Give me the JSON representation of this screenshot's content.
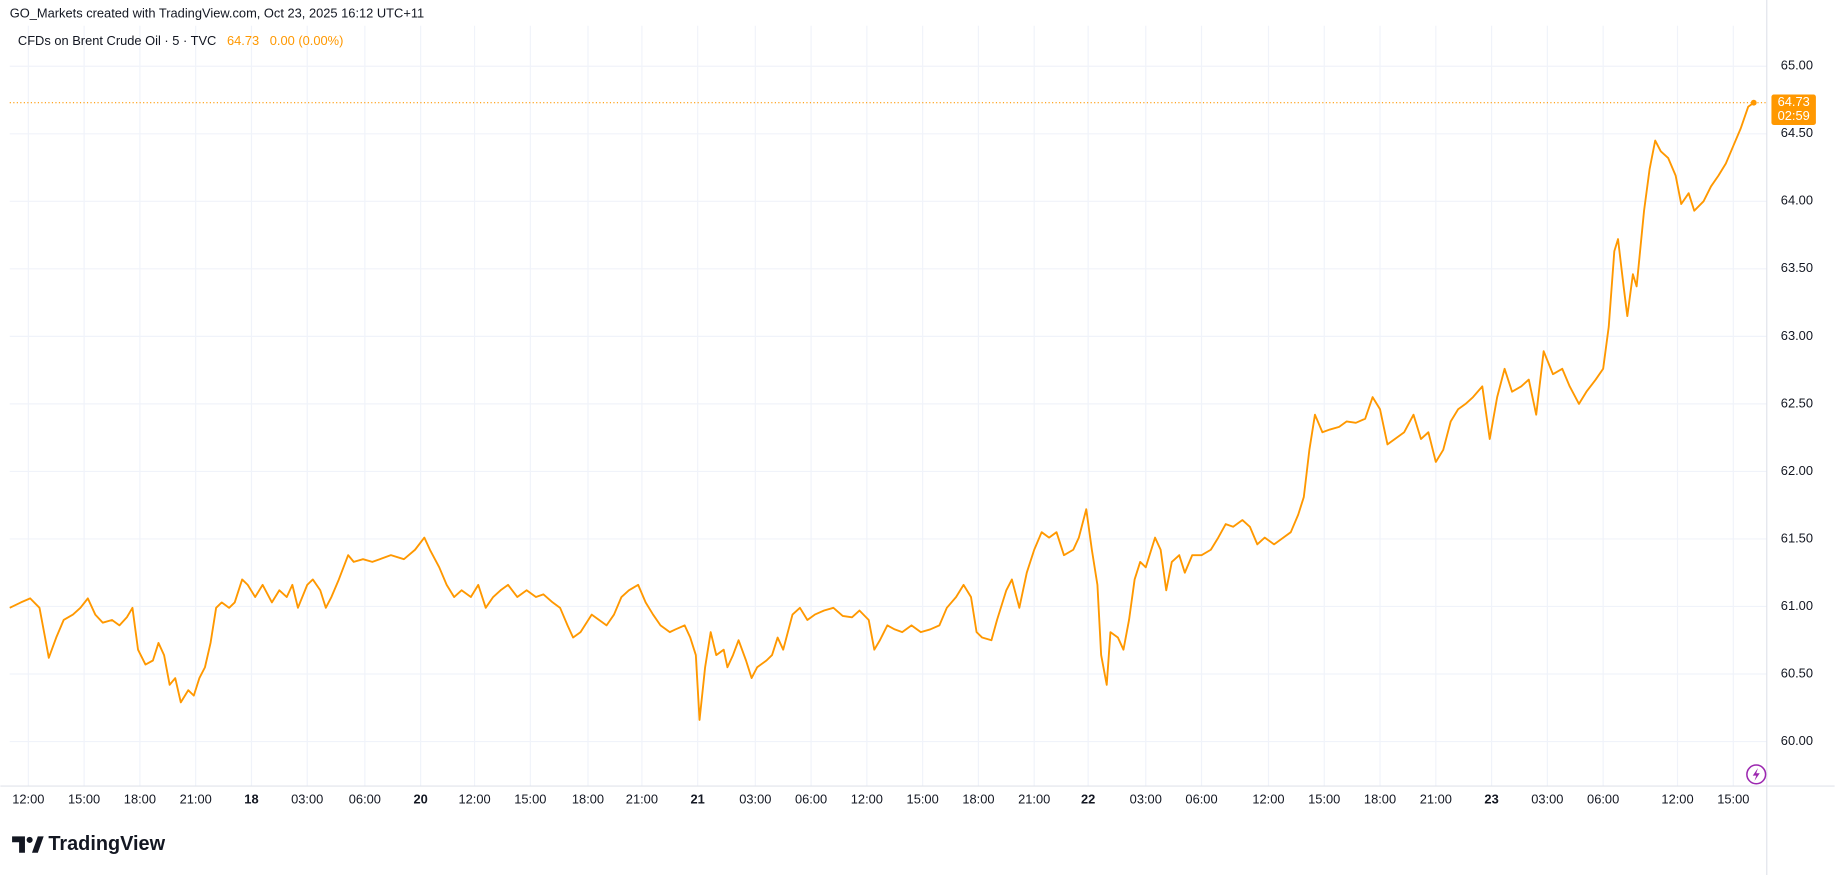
{
  "header": {
    "text": "GO_Markets created with TradingView.com, Oct 23, 2025 16:12 UTC+11"
  },
  "footer": {
    "brand": "TradingView"
  },
  "chart_data": {
    "type": "line",
    "title": "CFDs on Brent Crude Oil · 5 · TVC",
    "change": "0.00 (0.00%)",
    "countdown": "02:59",
    "color": "#ff9800",
    "grid": true,
    "xlim": [
      -1.0,
      93.5
    ],
    "ylim": [
      59.67,
      65.3
    ],
    "xticks": [
      {
        "value": 0,
        "label": "12:00"
      },
      {
        "value": 3.0,
        "label": "15:00"
      },
      {
        "value": 6.0,
        "label": "18:00"
      },
      {
        "value": 9.0,
        "label": "21:00"
      },
      {
        "value": 12.0,
        "label": "18"
      },
      {
        "value": 15.0,
        "label": "03:00"
      },
      {
        "value": 18.1,
        "label": "06:00"
      },
      {
        "value": 21.1,
        "label": "20"
      },
      {
        "value": 24.0,
        "label": "12:00"
      },
      {
        "value": 27.0,
        "label": "15:00"
      },
      {
        "value": 30.1,
        "label": "18:00"
      },
      {
        "value": 33.0,
        "label": "21:00"
      },
      {
        "value": 36.0,
        "label": "21"
      },
      {
        "value": 39.1,
        "label": "03:00"
      },
      {
        "value": 42.1,
        "label": "06:00"
      },
      {
        "value": 45.1,
        "label": "12:00"
      },
      {
        "value": 48.1,
        "label": "15:00"
      },
      {
        "value": 51.1,
        "label": "18:00"
      },
      {
        "value": 54.1,
        "label": "21:00"
      },
      {
        "value": 57.0,
        "label": "22"
      },
      {
        "value": 60.1,
        "label": "03:00"
      },
      {
        "value": 63.1,
        "label": "06:00"
      },
      {
        "value": 66.7,
        "label": "12:00"
      },
      {
        "value": 69.7,
        "label": "15:00"
      },
      {
        "value": 72.7,
        "label": "18:00"
      },
      {
        "value": 75.7,
        "label": "21:00"
      },
      {
        "value": 78.7,
        "label": "23"
      },
      {
        "value": 81.7,
        "label": "03:00"
      },
      {
        "value": 84.7,
        "label": "06:00"
      },
      {
        "value": 88.7,
        "label": "12:00"
      },
      {
        "value": 91.7,
        "label": "15:00"
      }
    ],
    "yticks": [
      {
        "value": 60,
        "label": "60.00"
      },
      {
        "value": 60.5,
        "label": "60.50"
      },
      {
        "value": 61,
        "label": "61.00"
      },
      {
        "value": 61.5,
        "label": "61.50"
      },
      {
        "value": 62,
        "label": "62.00"
      },
      {
        "value": 62.5,
        "label": "62.50"
      },
      {
        "value": 63,
        "label": "63.00"
      },
      {
        "value": 63.5,
        "label": "63.50"
      },
      {
        "value": 64,
        "label": "64.00"
      },
      {
        "value": 64.5,
        "label": "64.50"
      },
      {
        "value": 65,
        "label": "65.00"
      }
    ],
    "x": [
      -1.0,
      -0.4,
      0.1,
      0.6,
      0.9,
      1.1,
      1.5,
      1.9,
      2.4,
      2.8,
      3.2,
      3.6,
      4.0,
      4.5,
      4.9,
      5.3,
      5.6,
      5.9,
      6.3,
      6.7,
      7.0,
      7.3,
      7.6,
      7.9,
      8.2,
      8.6,
      8.9,
      9.2,
      9.5,
      9.8,
      10.1,
      10.4,
      10.8,
      11.1,
      11.5,
      11.8,
      12.2,
      12.6,
      13.1,
      13.5,
      13.9,
      14.2,
      14.5,
      15.0,
      15.3,
      15.7,
      16.0,
      16.3,
      16.7,
      17.2,
      17.5,
      18.0,
      18.5,
      18.9,
      19.5,
      20.2,
      20.8,
      21.3,
      21.6,
      22.1,
      22.5,
      22.9,
      23.3,
      23.8,
      24.2,
      24.6,
      25.0,
      25.4,
      25.8,
      26.3,
      26.8,
      27.3,
      27.7,
      28.2,
      28.6,
      29.0,
      29.3,
      29.7,
      30.3,
      30.7,
      31.1,
      31.5,
      31.9,
      32.3,
      32.8,
      33.2,
      33.6,
      34.0,
      34.5,
      34.8,
      35.3,
      35.6,
      35.9,
      36.1,
      36.4,
      36.7,
      37.0,
      37.4,
      37.6,
      37.9,
      38.2,
      38.6,
      38.9,
      39.2,
      39.7,
      40.0,
      40.3,
      40.6,
      41.1,
      41.5,
      41.9,
      42.3,
      42.8,
      43.3,
      43.8,
      44.3,
      44.7,
      45.2,
      45.5,
      45.8,
      46.2,
      46.6,
      47.0,
      47.5,
      48.0,
      48.5,
      49.0,
      49.4,
      49.9,
      50.3,
      50.7,
      51.0,
      51.3,
      51.8,
      52.1,
      52.6,
      52.9,
      53.3,
      53.7,
      54.1,
      54.5,
      54.9,
      55.3,
      55.7,
      56.2,
      56.5,
      56.9,
      57.2,
      57.5,
      57.7,
      58.0,
      58.2,
      58.6,
      58.9,
      59.2,
      59.5,
      59.8,
      60.1,
      60.6,
      60.9,
      61.2,
      61.5,
      61.9,
      62.2,
      62.6,
      63.1,
      63.6,
      64.0,
      64.4,
      64.8,
      65.3,
      65.7,
      66.1,
      66.5,
      67.0,
      67.5,
      67.9,
      68.3,
      68.6,
      68.9,
      69.2,
      69.6,
      70.0,
      70.5,
      70.9,
      71.4,
      71.9,
      72.3,
      72.7,
      73.1,
      73.5,
      74.0,
      74.5,
      74.9,
      75.3,
      75.7,
      76.1,
      76.5,
      76.9,
      77.3,
      77.7,
      78.2,
      78.6,
      79.0,
      79.4,
      79.8,
      80.3,
      80.7,
      81.1,
      81.5,
      82.0,
      82.5,
      82.9,
      83.4,
      83.8,
      84.3,
      84.7,
      85.0,
      85.3,
      85.5,
      85.8,
      86.0,
      86.3,
      86.5,
      86.9,
      87.2,
      87.5,
      87.8,
      88.2,
      88.6,
      88.9,
      89.3,
      89.6,
      90.1,
      90.5,
      90.9,
      91.3,
      91.7,
      92.1,
      92.5,
      92.8
    ],
    "values": [
      60.99,
      61.03,
      61.06,
      60.99,
      60.77,
      60.62,
      60.77,
      60.9,
      60.94,
      60.99,
      61.06,
      60.94,
      60.88,
      60.9,
      60.86,
      60.92,
      60.99,
      60.68,
      60.57,
      60.6,
      60.73,
      60.64,
      60.42,
      60.47,
      60.29,
      60.38,
      60.34,
      60.47,
      60.55,
      60.73,
      60.99,
      61.03,
      60.99,
      61.03,
      61.2,
      61.16,
      61.07,
      61.16,
      61.03,
      61.12,
      61.07,
      61.16,
      60.99,
      61.16,
      61.2,
      61.12,
      60.99,
      61.07,
      61.2,
      61.38,
      61.33,
      61.35,
      61.33,
      61.35,
      61.38,
      61.35,
      61.42,
      61.51,
      61.42,
      61.29,
      61.16,
      61.07,
      61.12,
      61.07,
      61.16,
      60.99,
      61.07,
      61.12,
      61.16,
      61.07,
      61.12,
      61.07,
      61.09,
      61.03,
      60.99,
      60.86,
      60.77,
      60.81,
      60.94,
      60.9,
      60.86,
      60.94,
      61.07,
      61.12,
      61.16,
      61.03,
      60.94,
      60.86,
      60.81,
      60.83,
      60.86,
      60.77,
      60.64,
      60.16,
      60.55,
      60.81,
      60.64,
      60.68,
      60.55,
      60.64,
      60.75,
      60.6,
      60.47,
      60.55,
      60.6,
      60.64,
      60.77,
      60.68,
      60.94,
      60.99,
      60.9,
      60.94,
      60.97,
      60.99,
      60.93,
      60.92,
      60.97,
      60.9,
      60.68,
      60.75,
      60.86,
      60.83,
      60.81,
      60.86,
      60.81,
      60.83,
      60.86,
      60.99,
      61.07,
      61.16,
      61.07,
      60.81,
      60.77,
      60.75,
      60.9,
      61.12,
      61.2,
      60.99,
      61.25,
      61.42,
      61.55,
      61.51,
      61.55,
      61.38,
      61.42,
      61.51,
      61.72,
      61.42,
      61.16,
      60.64,
      60.42,
      60.81,
      60.77,
      60.68,
      60.9,
      61.2,
      61.33,
      61.29,
      61.51,
      61.42,
      61.12,
      61.33,
      61.38,
      61.25,
      61.38,
      61.38,
      61.42,
      61.51,
      61.61,
      61.59,
      61.64,
      61.59,
      61.46,
      61.51,
      61.46,
      61.51,
      61.55,
      61.68,
      61.81,
      62.16,
      62.42,
      62.29,
      62.31,
      62.33,
      62.37,
      62.36,
      62.39,
      62.55,
      62.46,
      62.2,
      62.24,
      62.29,
      62.42,
      62.24,
      62.29,
      62.07,
      62.16,
      62.37,
      62.46,
      62.5,
      62.55,
      62.63,
      62.24,
      62.55,
      62.76,
      62.59,
      62.63,
      62.68,
      62.42,
      62.89,
      62.72,
      62.76,
      62.63,
      62.5,
      62.59,
      62.68,
      62.76,
      63.07,
      63.63,
      63.72,
      63.37,
      63.15,
      63.46,
      63.37,
      63.93,
      64.24,
      64.45,
      64.37,
      64.32,
      64.19,
      63.98,
      64.06,
      63.93,
      64.0,
      64.11,
      64.19,
      64.28,
      64.41,
      64.54,
      64.7,
      64.73
    ]
  }
}
